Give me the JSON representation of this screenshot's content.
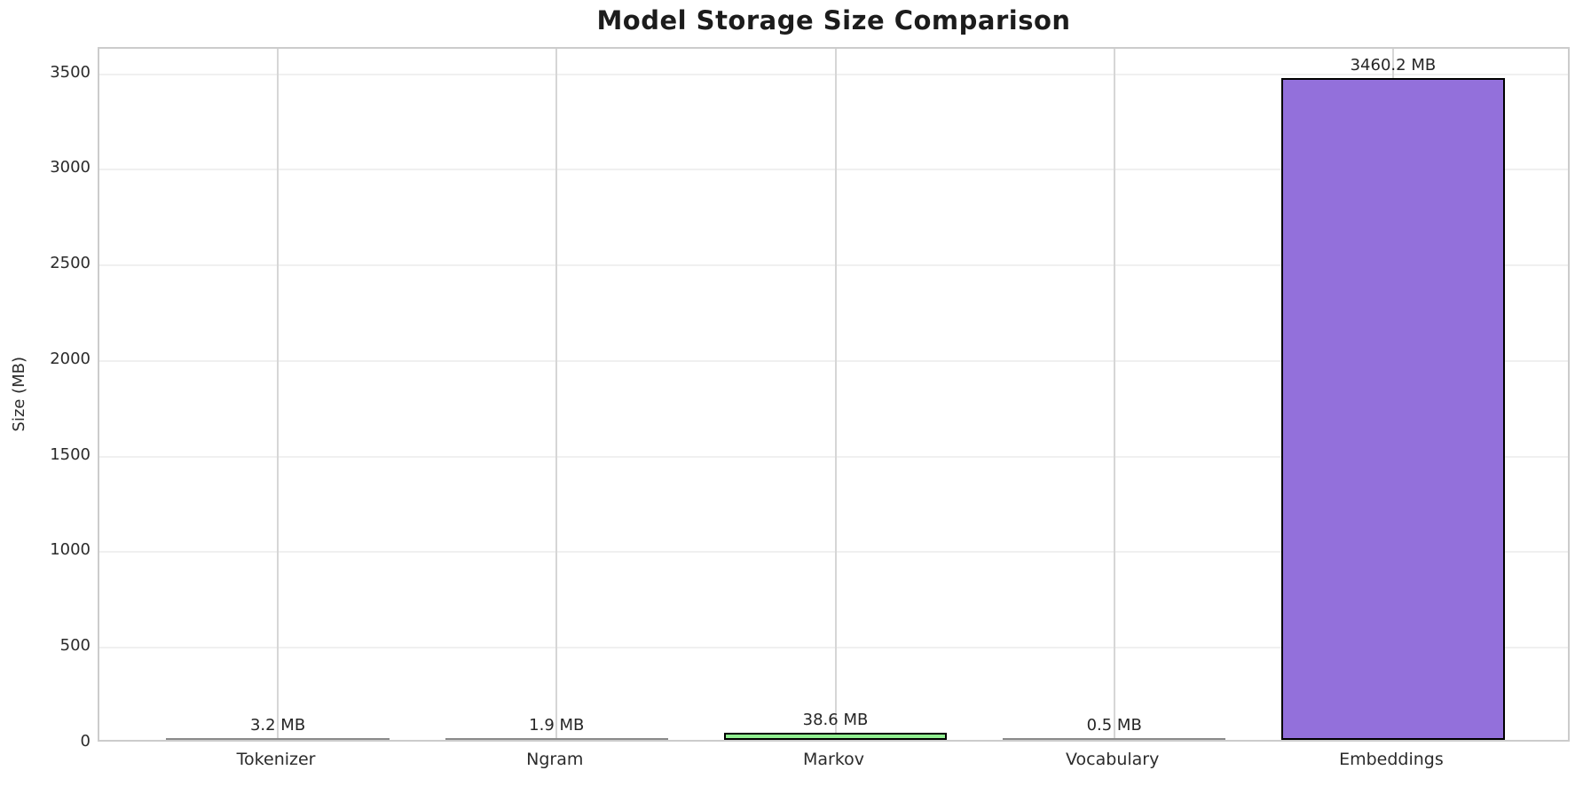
{
  "title": "Model Storage Size Comparison",
  "chart_data": {
    "type": "bar",
    "title": "Model Storage Size Comparison",
    "xlabel": "",
    "ylabel": "Size (MB)",
    "categories": [
      "Tokenizer",
      "Ngram",
      "Markov",
      "Vocabulary",
      "Embeddings"
    ],
    "values": [
      3.2,
      1.9,
      38.6,
      0.5,
      3460.2
    ],
    "bar_labels": [
      "3.2 MB",
      "1.9 MB",
      "38.6 MB",
      "0.5 MB",
      "3460.2 MB"
    ],
    "bar_colors": [
      "#8a8a8a",
      "#8a8a8a",
      "#90EE90",
      "#8a8a8a",
      "#9370DB"
    ],
    "bar_edge_color": "#000000",
    "yticks": [
      0,
      500,
      1000,
      1500,
      2000,
      2500,
      3000,
      3500
    ],
    "ylim": [
      0,
      3633
    ],
    "grid": true,
    "legend": false
  }
}
